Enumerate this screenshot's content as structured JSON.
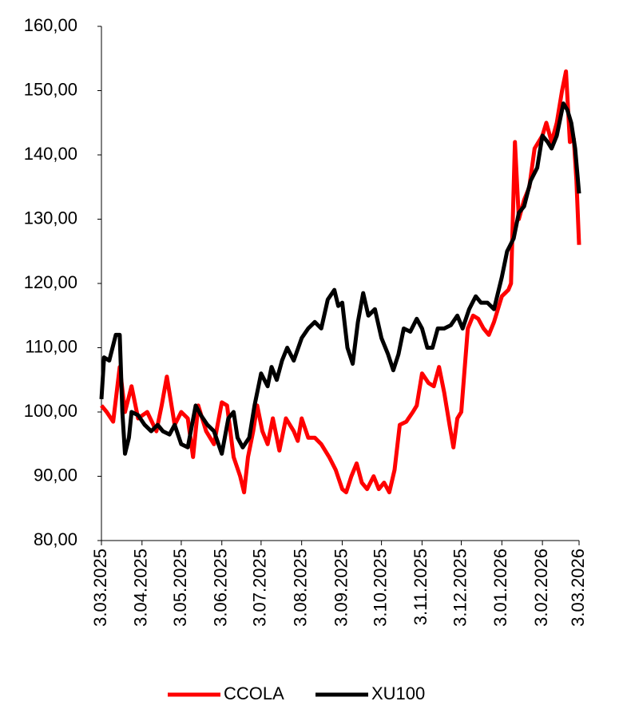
{
  "chart_data": {
    "type": "line",
    "xlim": [
      "3.03.2025",
      "3.03.2026"
    ],
    "xticks": [
      "3.03.2025",
      "3.04.2025",
      "3.05.2025",
      "3.06.2025",
      "3.07.2025",
      "3.08.2025",
      "3.09.2025",
      "3.10.2025",
      "3.11.2025",
      "3.12.2025",
      "3.01.2026",
      "3.02.2026",
      "3.03.2026"
    ],
    "ylim": [
      80,
      160
    ],
    "yticks": [
      {
        "value": 80,
        "label": "80,00"
      },
      {
        "value": 90,
        "label": "90,00"
      },
      {
        "value": 100,
        "label": "100,00"
      },
      {
        "value": 110,
        "label": "110,00"
      },
      {
        "value": 120,
        "label": "120,00"
      },
      {
        "value": 130,
        "label": "130,00"
      },
      {
        "value": 140,
        "label": "140,00"
      },
      {
        "value": 150,
        "label": "150,00"
      },
      {
        "value": 160,
        "label": "160,00"
      }
    ],
    "legend": "bottom",
    "series": [
      {
        "name": "CCOLA",
        "color": "#ff0000",
        "x": [
          "3.03.2025",
          "7.03.2025",
          "12.03.2025",
          "17.03.2025",
          "21.03.2025",
          "26.03.2025",
          "31.03.2025",
          "7.04.2025",
          "14.04.2025",
          "18.04.2025",
          "22.04.2025",
          "28.04.2025",
          "3.05.2025",
          "8.05.2025",
          "12.05.2025",
          "16.05.2025",
          "22.05.2025",
          "28.05.2025",
          "3.06.2025",
          "7.06.2025",
          "12.06.2025",
          "17.06.2025",
          "20.06.2025",
          "23.06.2025",
          "27.06.2025",
          "30.06.2025",
          "4.07.2025",
          "8.07.2025",
          "12.07.2025",
          "17.07.2025",
          "22.07.2025",
          "28.07.2025",
          "31.07.2025",
          "3.08.2025",
          "8.08.2025",
          "13.08.2025",
          "18.08.2025",
          "24.08.2025",
          "29.08.2025",
          "3.09.2025",
          "6.09.2025",
          "10.09.2025",
          "14.09.2025",
          "18.09.2025",
          "22.09.2025",
          "27.09.2025",
          "1.10.2025",
          "5.10.2025",
          "9.10.2025",
          "13.10.2025",
          "17.10.2025",
          "22.10.2025",
          "27.10.2025",
          "30.10.2025",
          "3.11.2025",
          "8.11.2025",
          "12.11.2025",
          "16.11.2025",
          "20.11.2025",
          "24.11.2025",
          "27.11.2025",
          "30.11.2025",
          "3.12.2025",
          "8.12.2025",
          "12.12.2025",
          "16.12.2025",
          "20.12.2025",
          "24.12.2025",
          "28.12.2025",
          "3.01.2026",
          "8.01.2026",
          "10.01.2026",
          "13.01.2026",
          "16.01.2026",
          "20.01.2026",
          "24.01.2026",
          "28.01.2026",
          "3.02.2026",
          "6.02.2026",
          "10.02.2026",
          "14.02.2026",
          "18.02.2026",
          "21.02.2026",
          "24.02.2026",
          "27.02.2026",
          "1.03.2026",
          "3.03.2026"
        ],
        "values": [
          101,
          100,
          98.5,
          107,
          100,
          104,
          99,
          100,
          97,
          101,
          105.5,
          98,
          100,
          99,
          93,
          101,
          97,
          95,
          101.5,
          101,
          93,
          90,
          87.5,
          93,
          97,
          101,
          97,
          95,
          99,
          94,
          99,
          97,
          95.5,
          99,
          96,
          96,
          95,
          93,
          91,
          88,
          87.5,
          90,
          92,
          89,
          88,
          90,
          88,
          89,
          87.5,
          91,
          98,
          98.5,
          100,
          101,
          106,
          104.5,
          104,
          107,
          103,
          98,
          94.5,
          99,
          100,
          113,
          115,
          114.5,
          113,
          112,
          114,
          118,
          119,
          120,
          142,
          130,
          133,
          135,
          141,
          143,
          145,
          142,
          145,
          150,
          153,
          142,
          142.5,
          136,
          126
        ]
      },
      {
        "name": "XU100",
        "color": "#000000",
        "x": [
          "3.03.2025",
          "5.03.2025",
          "9.03.2025",
          "14.03.2025",
          "17.03.2025",
          "19.03.2025",
          "21.03.2025",
          "24.03.2025",
          "26.03.2025",
          "31.03.2025",
          "5.04.2025",
          "10.04.2025",
          "15.04.2025",
          "19.04.2025",
          "24.04.2025",
          "28.04.2025",
          "3.05.2025",
          "8.05.2025",
          "14.05.2025",
          "18.05.2025",
          "23.05.2025",
          "28.05.2025",
          "3.06.2025",
          "8.06.2025",
          "12.06.2025",
          "15.06.2025",
          "19.06.2025",
          "24.06.2025",
          "28.06.2025",
          "3.07.2025",
          "8.07.2025",
          "11.07.2025",
          "15.07.2025",
          "19.07.2025",
          "23.07.2025",
          "28.07.2025",
          "3.08.2025",
          "8.08.2025",
          "13.08.2025",
          "18.08.2025",
          "23.08.2025",
          "28.08.2025",
          "31.08.2025",
          "3.09.2025",
          "7.09.2025",
          "11.09.2025",
          "15.09.2025",
          "19.09.2025",
          "23.09.2025",
          "28.09.2025",
          "3.10.2025",
          "8.10.2025",
          "12.10.2025",
          "16.10.2025",
          "20.10.2025",
          "25.10.2025",
          "30.10.2025",
          "3.11.2025",
          "7.11.2025",
          "11.11.2025",
          "15.11.2025",
          "20.11.2025",
          "25.11.2025",
          "30.11.2025",
          "4.12.2025",
          "9.12.2025",
          "14.12.2025",
          "18.12.2025",
          "23.12.2025",
          "28.12.2025",
          "3.01.2026",
          "7.01.2026",
          "12.01.2026",
          "16.01.2026",
          "20.01.2026",
          "25.01.2026",
          "30.01.2026",
          "3.02.2026",
          "7.02.2026",
          "10.02.2026",
          "14.02.2026",
          "19.02.2026",
          "22.02.2026",
          "25.02.2026",
          "28.02.2026",
          "3.03.2026"
        ],
        "values": [
          102,
          108.5,
          108,
          112,
          112,
          100,
          93.5,
          96,
          100,
          99.5,
          98,
          97,
          98,
          97,
          96.5,
          98,
          95,
          94.5,
          101,
          99.5,
          98,
          97,
          93.5,
          99,
          100,
          96,
          94.5,
          96,
          101,
          106,
          104,
          107,
          105,
          108,
          110,
          108,
          111.5,
          113,
          114,
          113,
          117.5,
          119,
          116.5,
          117,
          110,
          107.5,
          114,
          118.5,
          115,
          116,
          111.5,
          109,
          106.5,
          109,
          113,
          112.5,
          114.5,
          113,
          110,
          110,
          113,
          113,
          113.5,
          115,
          113,
          116,
          118,
          117,
          117,
          116,
          121,
          125,
          127,
          131,
          132,
          136,
          138,
          143,
          142,
          141,
          143,
          148,
          147,
          145,
          141,
          134
        ]
      }
    ]
  }
}
